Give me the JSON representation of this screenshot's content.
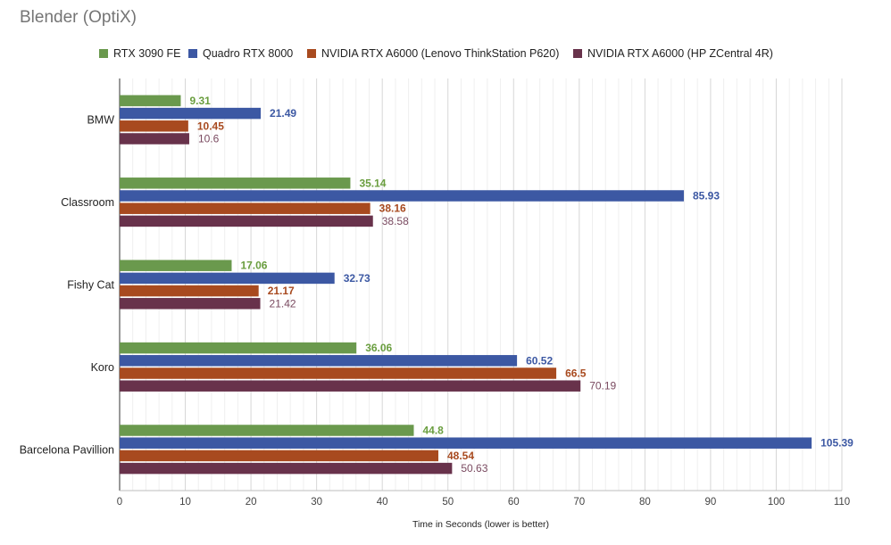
{
  "chart_data": {
    "type": "bar",
    "orientation": "horizontal",
    "title": "Blender (OptiX)",
    "xlabel": "Time in Seconds (lower is better)",
    "ylabel": "",
    "xlim": [
      0,
      110
    ],
    "x_ticks": [
      "0",
      "10",
      "20",
      "30",
      "40",
      "50",
      "60",
      "70",
      "80",
      "90",
      "100",
      "110"
    ],
    "grid": true,
    "legend_position": "top",
    "categories": [
      "BMW",
      "Classroom",
      "Fishy Cat",
      "Koro",
      "Barcelona Pavillion"
    ],
    "series": [
      {
        "name": "RTX 3090 FE",
        "color": "#6a994d",
        "label_color": "#6a9e3f",
        "label_bold": true,
        "values": [
          9.31,
          35.14,
          17.06,
          36.06,
          44.8
        ],
        "labels": [
          "9.31",
          "35.14",
          "17.06",
          "36.06",
          "44.8"
        ]
      },
      {
        "name": "Quadro RTX 8000",
        "color": "#3c58a3",
        "label_color": "#3c58a3",
        "label_bold": true,
        "values": [
          21.49,
          85.93,
          32.73,
          60.52,
          105.39
        ],
        "labels": [
          "21.49",
          "85.93",
          "32.73",
          "60.52",
          "105.39"
        ]
      },
      {
        "name": "NVIDIA RTX A6000 (Lenovo ThinkStation P620)",
        "color": "#a84a1f",
        "label_color": "#a84a1f",
        "label_bold": true,
        "values": [
          10.45,
          38.16,
          21.17,
          66.5,
          48.54
        ],
        "labels": [
          "10.45",
          "38.16",
          "21.17",
          "66.5",
          "48.54"
        ]
      },
      {
        "name": "NVIDIA RTX A6000 (HP ZCentral 4R)",
        "color": "#68324b",
        "label_color": "#7a4a60",
        "label_bold": false,
        "values": [
          10.6,
          38.58,
          21.42,
          70.19,
          50.63
        ],
        "labels": [
          "10.6",
          "38.58",
          "21.42",
          "70.19",
          "50.63"
        ]
      }
    ]
  }
}
